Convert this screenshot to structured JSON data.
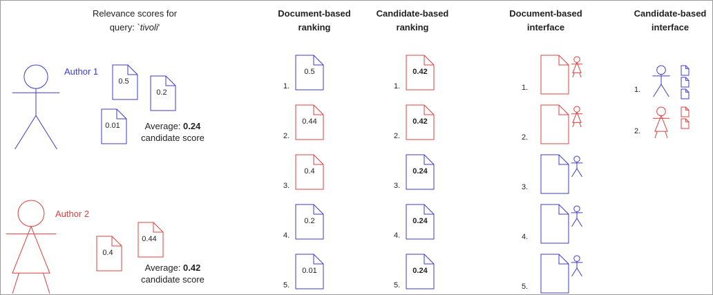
{
  "relevance": {
    "title": {
      "line1": "Relevance scores for",
      "query_prefix": "query: `",
      "query": "tivoli",
      "query_suffix": "'"
    },
    "authors": [
      {
        "name": "Author 1",
        "color": "#3a3ad0",
        "scores": [
          "0.5",
          "0.2",
          "0.01"
        ],
        "average_label": "Average:",
        "average": "0.24",
        "caption": "candidate score"
      },
      {
        "name": "Author 2",
        "color": "#e03c3c",
        "scores": [
          "0.4",
          "0.44"
        ],
        "average_label": "Average:",
        "average": "0.42",
        "caption": "candidate score"
      }
    ]
  },
  "columns": [
    {
      "header": [
        "Document-based",
        "ranking"
      ],
      "rows": [
        {
          "rank": "1.",
          "score": "0.5",
          "color": "#3a3ad0"
        },
        {
          "rank": "2.",
          "score": "0.44",
          "color": "#e03c3c"
        },
        {
          "rank": "3.",
          "score": "0.4",
          "color": "#e03c3c"
        },
        {
          "rank": "4.",
          "score": "0.2",
          "color": "#3a3ad0"
        },
        {
          "rank": "5.",
          "score": "0.01",
          "color": "#3a3ad0"
        }
      ]
    },
    {
      "header": [
        "Candidate-based",
        "ranking"
      ],
      "rows": [
        {
          "rank": "1.",
          "score": "0.42",
          "color": "#e03c3c"
        },
        {
          "rank": "2.",
          "score": "0.42",
          "color": "#e03c3c"
        },
        {
          "rank": "3.",
          "score": "0.24",
          "color": "#3a3ad0"
        },
        {
          "rank": "4.",
          "score": "0.24",
          "color": "#3a3ad0"
        },
        {
          "rank": "5.",
          "score": "0.24",
          "color": "#3a3ad0"
        }
      ]
    },
    {
      "header": [
        "Document-based",
        "interface"
      ],
      "rows": [
        {
          "rank": "1.",
          "color": "#e03c3c"
        },
        {
          "rank": "2.",
          "color": "#e03c3c"
        },
        {
          "rank": "3.",
          "color": "#3a3ad0"
        },
        {
          "rank": "4.",
          "color": "#3a3ad0"
        },
        {
          "rank": "5.",
          "color": "#3a3ad0"
        }
      ]
    },
    {
      "header": [
        "Candidate-based",
        "interface"
      ],
      "rows": [
        {
          "rank": "1.",
          "color": "#3a3ad0",
          "documents": 3
        },
        {
          "rank": "2.",
          "color": "#e03c3c",
          "documents": 2
        }
      ]
    }
  ]
}
